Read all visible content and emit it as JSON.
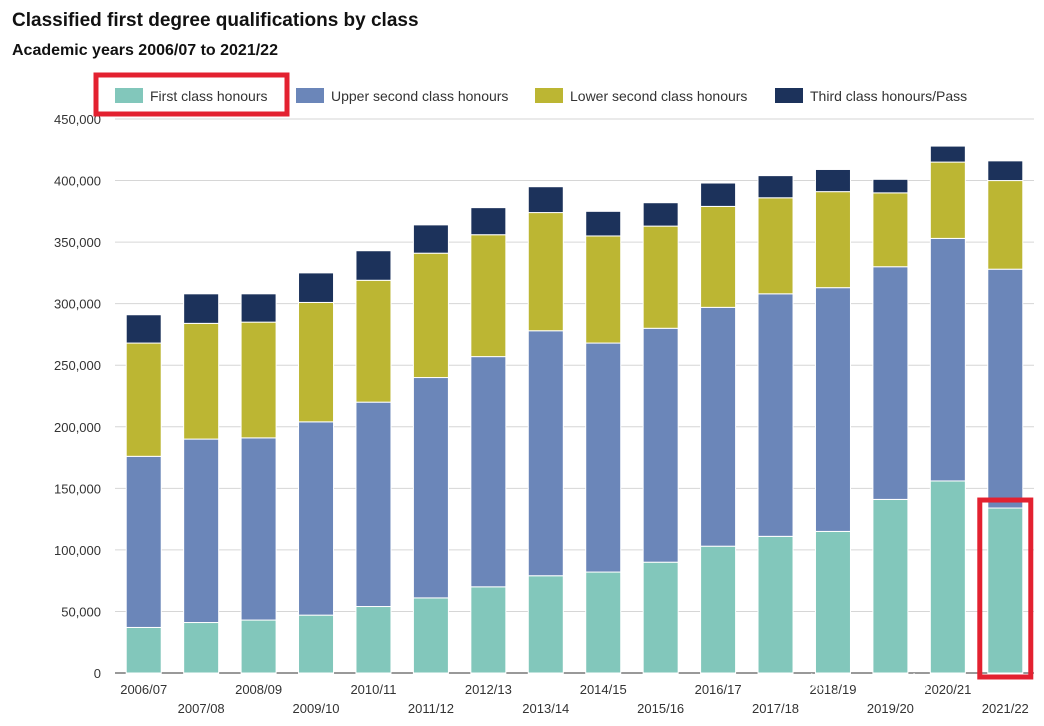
{
  "chart_data": {
    "type": "bar",
    "stacked": true,
    "title": "Classified first degree qualifications by class",
    "subtitle": "Academic years 2006/07 to 2021/22",
    "categories": [
      "2006/07",
      "2007/08",
      "2008/09",
      "2009/10",
      "2010/11",
      "2011/12",
      "2012/13",
      "2013/14",
      "2014/15",
      "2015/16",
      "2016/17",
      "2017/18",
      "2018/19",
      "2019/20",
      "2020/21",
      "2021/22"
    ],
    "series": [
      {
        "name": "First class honours",
        "color": "#82c7bb",
        "values": [
          37000,
          41000,
          43000,
          47000,
          54000,
          61000,
          70000,
          79000,
          82000,
          90000,
          103000,
          111000,
          115000,
          141000,
          156000,
          134000
        ]
      },
      {
        "name": "Upper second class honours",
        "color": "#6b86b9",
        "values": [
          139000,
          149000,
          148000,
          157000,
          166000,
          179000,
          187000,
          199000,
          186000,
          190000,
          194000,
          197000,
          198000,
          189000,
          197000,
          194000
        ]
      },
      {
        "name": "Lower second class honours",
        "color": "#bcb633",
        "values": [
          92000,
          94000,
          94000,
          97000,
          99000,
          101000,
          99000,
          96000,
          87000,
          83000,
          82000,
          78000,
          78000,
          60000,
          62000,
          72000
        ]
      },
      {
        "name": "Third class honours/Pass",
        "color": "#1c325b",
        "values": [
          23000,
          24000,
          23000,
          24000,
          24000,
          23000,
          22000,
          21000,
          20000,
          19000,
          19000,
          18000,
          18000,
          11000,
          13000,
          16000
        ]
      }
    ],
    "yticks": [
      "0",
      "50,000",
      "100,000",
      "150,000",
      "200,000",
      "250,000",
      "300,000",
      "350,000",
      "400,000",
      "450,000"
    ],
    "ylim": [
      0,
      450000
    ],
    "grid": true,
    "legend_position": "top",
    "highlight_color": "#e32130"
  },
  "watermark": {
    "text": "知乎 @cxu姐"
  }
}
